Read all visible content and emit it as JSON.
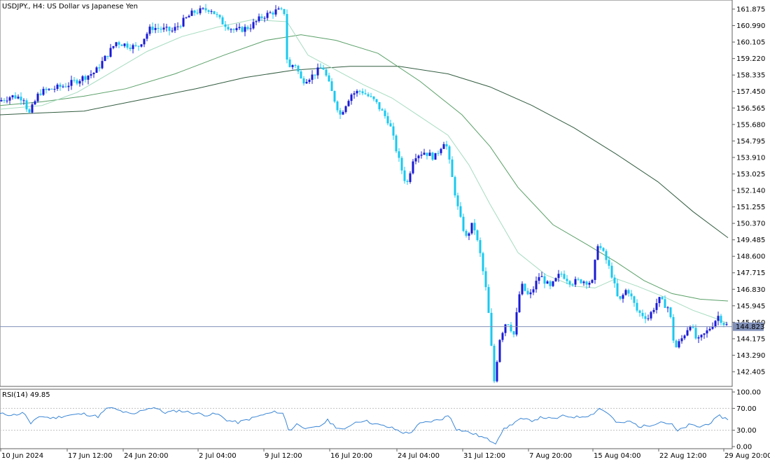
{
  "chart_data": {
    "type": "candlestick",
    "title": "USDJPY., H4:  US Dollar vs Japanese Yen",
    "y_ticks": [
      "161.875",
      "160.990",
      "160.105",
      "159.220",
      "158.335",
      "157.450",
      "156.565",
      "155.680",
      "154.795",
      "153.910",
      "153.025",
      "152.140",
      "151.255",
      "150.370",
      "149.485",
      "148.600",
      "147.715",
      "146.830",
      "145.945",
      "145.060",
      "144.175",
      "143.290",
      "142.405"
    ],
    "ylim": [
      141.75,
      162.4
    ],
    "x_ticks": [
      "10 Jun 2024",
      "17 Jun 12:00",
      "24 Jun 20:00",
      "2 Jul 04:00",
      "9 Jul 12:00",
      "16 Jul 20:00",
      "24 Jul 04:00",
      "31 Jul 12:00",
      "7 Aug 20:00",
      "15 Aug 04:00",
      "22 Aug 12:00",
      "29 Aug 20:00"
    ],
    "current_price": "144.823",
    "current_price_value": 144.823,
    "price_path": [
      {
        "x": 0,
        "y": 156.9
      },
      {
        "x": 20,
        "y": 157.2
      },
      {
        "x": 40,
        "y": 157.1
      },
      {
        "x": 44,
        "y": 156.1
      },
      {
        "x": 60,
        "y": 157.4
      },
      {
        "x": 100,
        "y": 157.8
      },
      {
        "x": 140,
        "y": 158.5
      },
      {
        "x": 170,
        "y": 160.1
      },
      {
        "x": 200,
        "y": 159.8
      },
      {
        "x": 220,
        "y": 160.9
      },
      {
        "x": 250,
        "y": 160.7
      },
      {
        "x": 280,
        "y": 161.7
      },
      {
        "x": 305,
        "y": 161.9
      },
      {
        "x": 320,
        "y": 161.2
      },
      {
        "x": 340,
        "y": 160.7
      },
      {
        "x": 360,
        "y": 160.9
      },
      {
        "x": 380,
        "y": 161.5
      },
      {
        "x": 400,
        "y": 161.8
      },
      {
        "x": 410,
        "y": 161.7
      },
      {
        "x": 415,
        "y": 158.6
      },
      {
        "x": 425,
        "y": 159.0
      },
      {
        "x": 435,
        "y": 158.0
      },
      {
        "x": 450,
        "y": 158.3
      },
      {
        "x": 465,
        "y": 158.8
      },
      {
        "x": 480,
        "y": 157.2
      },
      {
        "x": 490,
        "y": 156.2
      },
      {
        "x": 505,
        "y": 157.3
      },
      {
        "x": 520,
        "y": 157.5
      },
      {
        "x": 540,
        "y": 156.9
      },
      {
        "x": 560,
        "y": 155.8
      },
      {
        "x": 575,
        "y": 153.6
      },
      {
        "x": 585,
        "y": 152.4
      },
      {
        "x": 595,
        "y": 154.0
      },
      {
        "x": 610,
        "y": 154.2
      },
      {
        "x": 625,
        "y": 153.9
      },
      {
        "x": 640,
        "y": 154.9
      },
      {
        "x": 650,
        "y": 152.8
      },
      {
        "x": 660,
        "y": 150.8
      },
      {
        "x": 670,
        "y": 149.6
      },
      {
        "x": 680,
        "y": 150.4
      },
      {
        "x": 690,
        "y": 148.7
      },
      {
        "x": 700,
        "y": 146.4
      },
      {
        "x": 710,
        "y": 141.9
      },
      {
        "x": 718,
        "y": 144.2
      },
      {
        "x": 728,
        "y": 145.2
      },
      {
        "x": 738,
        "y": 144.4
      },
      {
        "x": 748,
        "y": 147.1
      },
      {
        "x": 760,
        "y": 146.4
      },
      {
        "x": 775,
        "y": 147.6
      },
      {
        "x": 790,
        "y": 146.9
      },
      {
        "x": 805,
        "y": 147.7
      },
      {
        "x": 820,
        "y": 147.2
      },
      {
        "x": 835,
        "y": 147.3
      },
      {
        "x": 850,
        "y": 147.2
      },
      {
        "x": 858,
        "y": 149.3
      },
      {
        "x": 868,
        "y": 148.6
      },
      {
        "x": 878,
        "y": 147.6
      },
      {
        "x": 888,
        "y": 146.1
      },
      {
        "x": 900,
        "y": 146.9
      },
      {
        "x": 915,
        "y": 145.6
      },
      {
        "x": 930,
        "y": 145.3
      },
      {
        "x": 945,
        "y": 146.3
      },
      {
        "x": 960,
        "y": 145.8
      },
      {
        "x": 968,
        "y": 143.6
      },
      {
        "x": 980,
        "y": 144.3
      },
      {
        "x": 990,
        "y": 145.0
      },
      {
        "x": 1000,
        "y": 144.0
      },
      {
        "x": 1015,
        "y": 144.6
      },
      {
        "x": 1030,
        "y": 145.4
      },
      {
        "x": 1040,
        "y": 144.9
      }
    ],
    "ma_fast": [
      {
        "x": 0,
        "y": 156.5
      },
      {
        "x": 60,
        "y": 156.7
      },
      {
        "x": 110,
        "y": 157.4
      },
      {
        "x": 160,
        "y": 158.5
      },
      {
        "x": 210,
        "y": 159.6
      },
      {
        "x": 260,
        "y": 160.4
      },
      {
        "x": 310,
        "y": 160.9
      },
      {
        "x": 360,
        "y": 161.3
      },
      {
        "x": 410,
        "y": 161.2
      },
      {
        "x": 440,
        "y": 159.4
      },
      {
        "x": 480,
        "y": 158.6
      },
      {
        "x": 520,
        "y": 157.8
      },
      {
        "x": 560,
        "y": 157.1
      },
      {
        "x": 600,
        "y": 156.1
      },
      {
        "x": 640,
        "y": 155.1
      },
      {
        "x": 670,
        "y": 153.5
      },
      {
        "x": 700,
        "y": 151.4
      },
      {
        "x": 740,
        "y": 148.8
      },
      {
        "x": 780,
        "y": 147.6
      },
      {
        "x": 820,
        "y": 147.0
      },
      {
        "x": 850,
        "y": 146.9
      },
      {
        "x": 880,
        "y": 147.4
      },
      {
        "x": 910,
        "y": 147.0
      },
      {
        "x": 950,
        "y": 146.4
      },
      {
        "x": 990,
        "y": 145.7
      },
      {
        "x": 1020,
        "y": 145.3
      },
      {
        "x": 1040,
        "y": 145.0
      }
    ],
    "ma_mid": [
      {
        "x": 0,
        "y": 156.7
      },
      {
        "x": 60,
        "y": 156.9
      },
      {
        "x": 120,
        "y": 157.2
      },
      {
        "x": 180,
        "y": 157.6
      },
      {
        "x": 250,
        "y": 158.4
      },
      {
        "x": 320,
        "y": 159.4
      },
      {
        "x": 380,
        "y": 160.2
      },
      {
        "x": 430,
        "y": 160.5
      },
      {
        "x": 480,
        "y": 160.2
      },
      {
        "x": 540,
        "y": 159.5
      },
      {
        "x": 600,
        "y": 158.0
      },
      {
        "x": 660,
        "y": 156.2
      },
      {
        "x": 700,
        "y": 154.5
      },
      {
        "x": 740,
        "y": 152.3
      },
      {
        "x": 790,
        "y": 150.3
      },
      {
        "x": 840,
        "y": 149.2
      },
      {
        "x": 880,
        "y": 148.3
      },
      {
        "x": 920,
        "y": 147.3
      },
      {
        "x": 960,
        "y": 146.6
      },
      {
        "x": 1000,
        "y": 146.3
      },
      {
        "x": 1040,
        "y": 146.2
      }
    ],
    "ma_slow": [
      {
        "x": 0,
        "y": 156.2
      },
      {
        "x": 60,
        "y": 156.3
      },
      {
        "x": 120,
        "y": 156.4
      },
      {
        "x": 200,
        "y": 157.0
      },
      {
        "x": 280,
        "y": 157.6
      },
      {
        "x": 350,
        "y": 158.2
      },
      {
        "x": 420,
        "y": 158.6
      },
      {
        "x": 500,
        "y": 158.8
      },
      {
        "x": 570,
        "y": 158.8
      },
      {
        "x": 640,
        "y": 158.4
      },
      {
        "x": 700,
        "y": 157.7
      },
      {
        "x": 760,
        "y": 156.7
      },
      {
        "x": 820,
        "y": 155.5
      },
      {
        "x": 880,
        "y": 154.1
      },
      {
        "x": 940,
        "y": 152.6
      },
      {
        "x": 990,
        "y": 151.0
      },
      {
        "x": 1040,
        "y": 149.6
      }
    ],
    "rsi": {
      "label": "RSI(14) 49.85",
      "y_ticks": [
        "100.00",
        "70.00",
        "30.00",
        "0.00"
      ],
      "ylim": [
        0,
        100
      ],
      "levels": [
        70,
        30
      ],
      "series": [
        {
          "x": 0,
          "y": 60
        },
        {
          "x": 20,
          "y": 58
        },
        {
          "x": 35,
          "y": 62
        },
        {
          "x": 44,
          "y": 40
        },
        {
          "x": 55,
          "y": 56
        },
        {
          "x": 75,
          "y": 52
        },
        {
          "x": 95,
          "y": 57
        },
        {
          "x": 120,
          "y": 60
        },
        {
          "x": 140,
          "y": 55
        },
        {
          "x": 155,
          "y": 72
        },
        {
          "x": 170,
          "y": 66
        },
        {
          "x": 190,
          "y": 58
        },
        {
          "x": 205,
          "y": 68
        },
        {
          "x": 220,
          "y": 72
        },
        {
          "x": 235,
          "y": 62
        },
        {
          "x": 255,
          "y": 66
        },
        {
          "x": 275,
          "y": 62
        },
        {
          "x": 295,
          "y": 58
        },
        {
          "x": 310,
          "y": 60
        },
        {
          "x": 325,
          "y": 48
        },
        {
          "x": 340,
          "y": 44
        },
        {
          "x": 355,
          "y": 50
        },
        {
          "x": 375,
          "y": 58
        },
        {
          "x": 395,
          "y": 64
        },
        {
          "x": 405,
          "y": 60
        },
        {
          "x": 413,
          "y": 28
        },
        {
          "x": 425,
          "y": 42
        },
        {
          "x": 440,
          "y": 32
        },
        {
          "x": 455,
          "y": 36
        },
        {
          "x": 468,
          "y": 48
        },
        {
          "x": 480,
          "y": 36
        },
        {
          "x": 492,
          "y": 30
        },
        {
          "x": 505,
          "y": 44
        },
        {
          "x": 520,
          "y": 48
        },
        {
          "x": 540,
          "y": 40
        },
        {
          "x": 560,
          "y": 34
        },
        {
          "x": 575,
          "y": 26
        },
        {
          "x": 585,
          "y": 24
        },
        {
          "x": 600,
          "y": 42
        },
        {
          "x": 615,
          "y": 46
        },
        {
          "x": 630,
          "y": 50
        },
        {
          "x": 642,
          "y": 58
        },
        {
          "x": 652,
          "y": 32
        },
        {
          "x": 665,
          "y": 28
        },
        {
          "x": 680,
          "y": 22
        },
        {
          "x": 695,
          "y": 14
        },
        {
          "x": 708,
          "y": 7
        },
        {
          "x": 718,
          "y": 30
        },
        {
          "x": 730,
          "y": 40
        },
        {
          "x": 742,
          "y": 50
        },
        {
          "x": 760,
          "y": 48
        },
        {
          "x": 775,
          "y": 54
        },
        {
          "x": 790,
          "y": 50
        },
        {
          "x": 805,
          "y": 56
        },
        {
          "x": 825,
          "y": 54
        },
        {
          "x": 845,
          "y": 58
        },
        {
          "x": 856,
          "y": 70
        },
        {
          "x": 868,
          "y": 62
        },
        {
          "x": 882,
          "y": 42
        },
        {
          "x": 900,
          "y": 46
        },
        {
          "x": 915,
          "y": 36
        },
        {
          "x": 930,
          "y": 40
        },
        {
          "x": 945,
          "y": 46
        },
        {
          "x": 960,
          "y": 40
        },
        {
          "x": 968,
          "y": 28
        },
        {
          "x": 985,
          "y": 40
        },
        {
          "x": 1000,
          "y": 36
        },
        {
          "x": 1015,
          "y": 44
        },
        {
          "x": 1028,
          "y": 56
        },
        {
          "x": 1040,
          "y": 49.85
        }
      ]
    },
    "colors": {
      "bull": "#1a1ad6",
      "bear": "#19c8f0",
      "ma_fast": "#a6dcc0",
      "ma_mid": "#5aa068",
      "ma_slow": "#325c40",
      "rsi": "#3a86d6",
      "price_line": "#8090b8",
      "price_box": "#8090b8",
      "axis": "#606060",
      "level": "#c0c0c0"
    }
  }
}
